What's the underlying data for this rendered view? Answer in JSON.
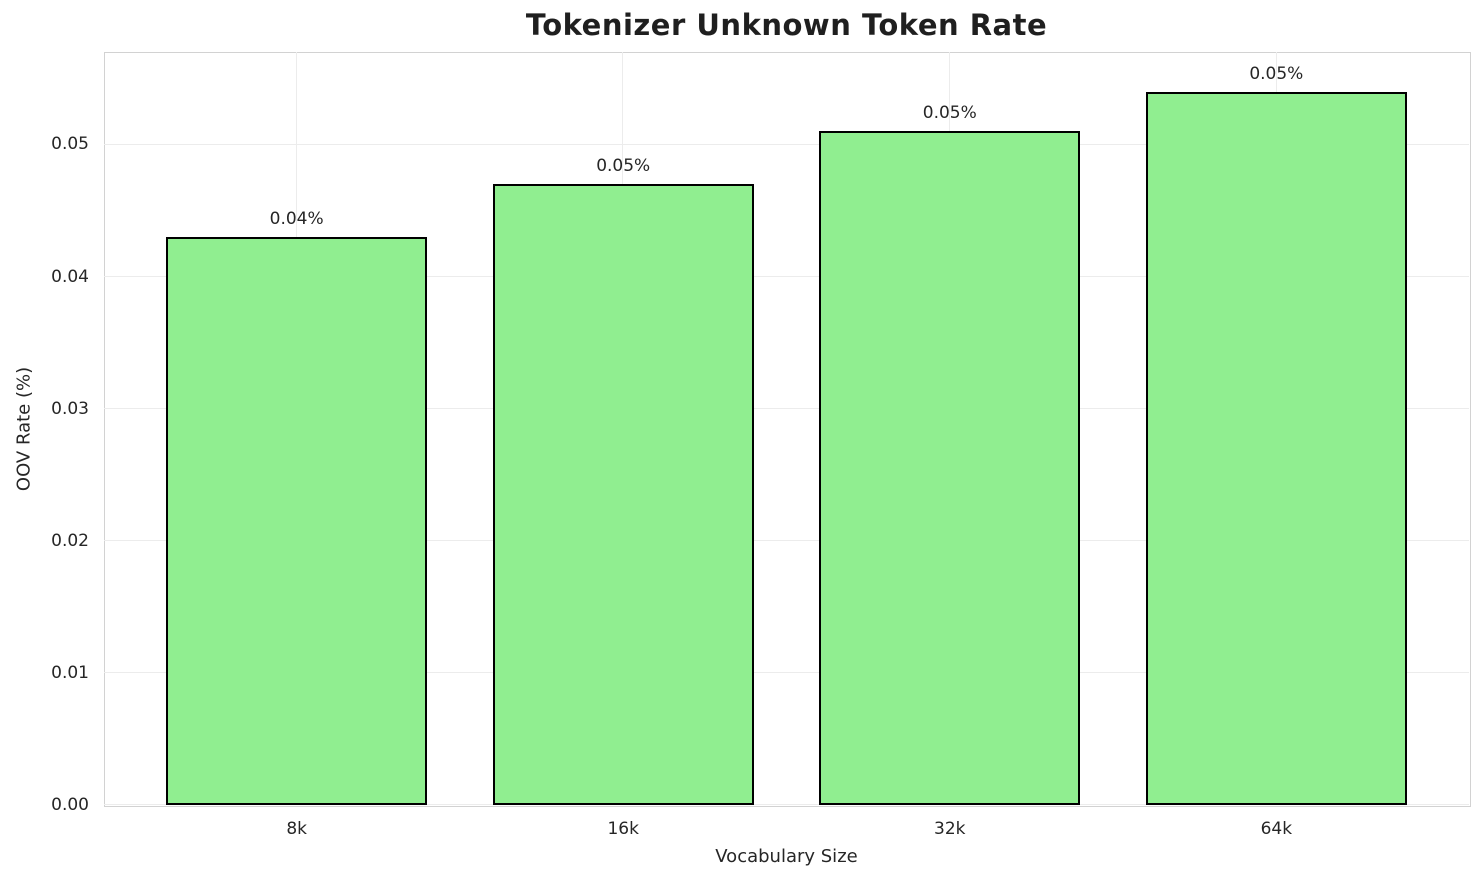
{
  "chart_data": {
    "type": "bar",
    "title": "Tokenizer Unknown Token Rate",
    "xlabel": "Vocabulary Size",
    "ylabel": "OOV Rate (%)",
    "categories": [
      "8k",
      "16k",
      "32k",
      "64k"
    ],
    "values": [
      0.043,
      0.047,
      0.051,
      0.054
    ],
    "bar_labels": [
      "0.04%",
      "0.05%",
      "0.05%",
      "0.05%"
    ],
    "ytick_values": [
      0.0,
      0.01,
      0.02,
      0.03,
      0.04,
      0.05
    ],
    "ytick_labels": [
      "0.00",
      "0.01",
      "0.02",
      "0.03",
      "0.04",
      "0.05"
    ],
    "ylim": [
      0,
      0.057
    ],
    "grid": true,
    "legend": false,
    "bar_color": "#90EE90",
    "bar_edge_color": "#000000",
    "background_color": "#ffffff"
  }
}
